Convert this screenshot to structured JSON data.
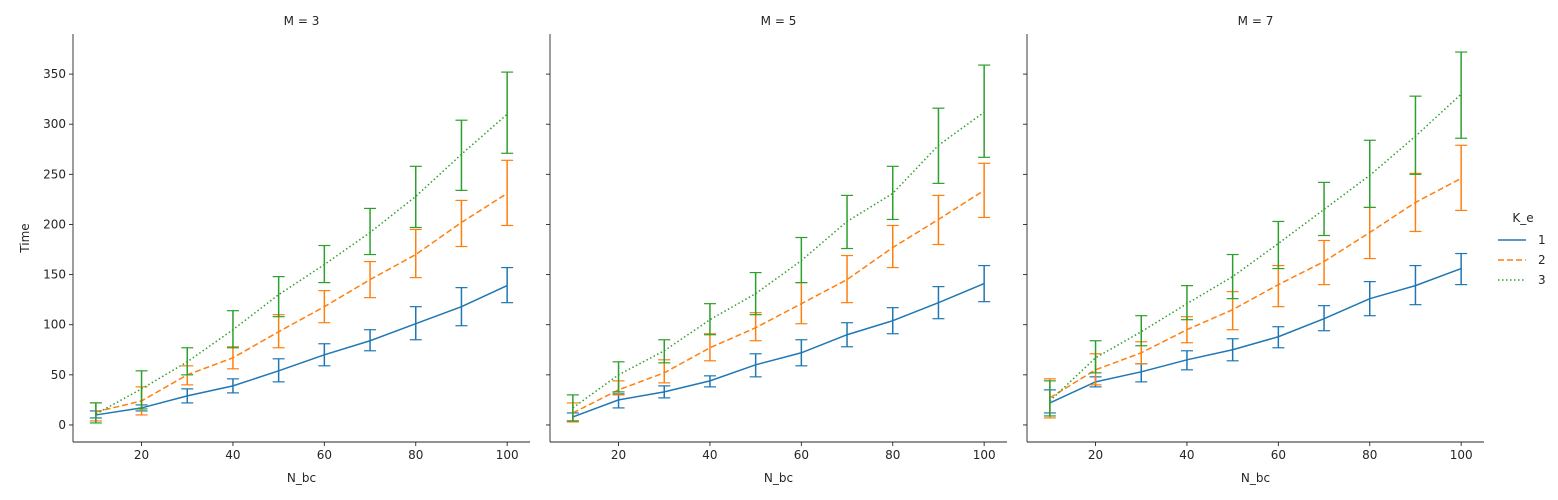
{
  "chart_data": {
    "type": "line",
    "ylabel": "Time",
    "xlabel": "N_bc",
    "x": [
      10,
      20,
      30,
      40,
      50,
      60,
      70,
      80,
      90,
      100
    ],
    "xticks": [
      20,
      40,
      60,
      80,
      100
    ],
    "yticks": [
      0,
      50,
      100,
      150,
      200,
      250,
      300,
      350
    ],
    "xlim": [
      5,
      105
    ],
    "ylim": [
      -17,
      390
    ],
    "legend": {
      "title": "K_e",
      "placement": "right"
    },
    "colors": {
      "1": "#1f77b4",
      "2": "#ff7f0e",
      "3": "#2ca02c"
    },
    "panels": [
      {
        "title": "M = 3",
        "series": [
          {
            "name": "1",
            "style": "solid",
            "values": [
              10,
              17,
              29,
              39,
              54,
              70,
              84,
              101,
              118,
              139
            ],
            "lower": [
              7,
              14,
              22,
              32,
              43,
              59,
              74,
              85,
              99,
              122
            ],
            "upper": [
              14,
              20,
              36,
              46,
              66,
              81,
              95,
              118,
              137,
              157
            ]
          },
          {
            "name": "2",
            "style": "dashed",
            "values": [
              13,
              24,
              50,
              67,
              93,
              118,
              145,
              170,
              202,
              231
            ],
            "lower": [
              4,
              10,
              40,
              56,
              77,
              102,
              127,
              147,
              178,
              199
            ],
            "upper": [
              22,
              38,
              59,
              78,
              110,
              134,
              163,
              195,
              224,
              264
            ]
          },
          {
            "name": "3",
            "style": "dotted",
            "values": [
              11,
              36,
              63,
              95,
              130,
              160,
              192,
              228,
              270,
              310
            ],
            "lower": [
              2,
              16,
              50,
              77,
              108,
              142,
              170,
              197,
              234,
              271
            ],
            "upper": [
              22,
              54,
              77,
              114,
              148,
              179,
              216,
              258,
              304,
              352
            ]
          }
        ]
      },
      {
        "title": "M = 5",
        "series": [
          {
            "name": "1",
            "style": "solid",
            "values": [
              8,
              25,
              33,
              44,
              60,
              72,
              90,
              104,
              122,
              141
            ],
            "lower": [
              4,
              17,
              27,
              38,
              48,
              59,
              78,
              91,
              106,
              123
            ],
            "upper": [
              12,
              31,
              39,
              49,
              71,
              85,
              102,
              117,
              138,
              159
            ]
          },
          {
            "name": "2",
            "style": "dashed",
            "values": [
              12,
              35,
              52,
              77,
              97,
              121,
              145,
              177,
              205,
              234
            ],
            "lower": [
              3,
              30,
              42,
              64,
              84,
              101,
              122,
              157,
              180,
              207
            ],
            "upper": [
              22,
              44,
              65,
              91,
              112,
              142,
              169,
              199,
              229,
              261
            ]
          },
          {
            "name": "3",
            "style": "dotted",
            "values": [
              17,
              50,
              74,
              105,
              131,
              164,
              203,
              231,
              279,
              312
            ],
            "lower": [
              4,
              33,
              62,
              90,
              110,
              142,
              176,
              205,
              241,
              267
            ],
            "upper": [
              30,
              63,
              85,
              121,
              152,
              187,
              229,
              258,
              316,
              359
            ]
          }
        ]
      },
      {
        "title": "M = 7",
        "series": [
          {
            "name": "1",
            "style": "solid",
            "values": [
              22,
              43,
              53,
              65,
              75,
              88,
              106,
              126,
              139,
              156
            ],
            "lower": [
              12,
              38,
              43,
              55,
              64,
              77,
              94,
              109,
              120,
              140
            ],
            "upper": [
              35,
              48,
              61,
              74,
              86,
              98,
              119,
              143,
              159,
              171
            ]
          },
          {
            "name": "2",
            "style": "dashed",
            "values": [
              27,
              55,
              72,
              95,
              115,
              140,
              163,
              192,
              222,
              246
            ],
            "lower": [
              7,
              40,
              61,
              82,
              95,
              118,
              140,
              166,
              193,
              214
            ],
            "upper": [
              46,
              71,
              83,
              108,
              133,
              159,
              184,
              217,
              251,
              279
            ]
          },
          {
            "name": "3",
            "style": "dotted",
            "values": [
              24,
              67,
              93,
              121,
              148,
              181,
              215,
              249,
              288,
              330
            ],
            "lower": [
              9,
              52,
              79,
              105,
              126,
              156,
              189,
              217,
              250,
              286
            ],
            "upper": [
              44,
              84,
              109,
              139,
              170,
              203,
              242,
              284,
              328,
              372
            ]
          }
        ]
      }
    ]
  }
}
